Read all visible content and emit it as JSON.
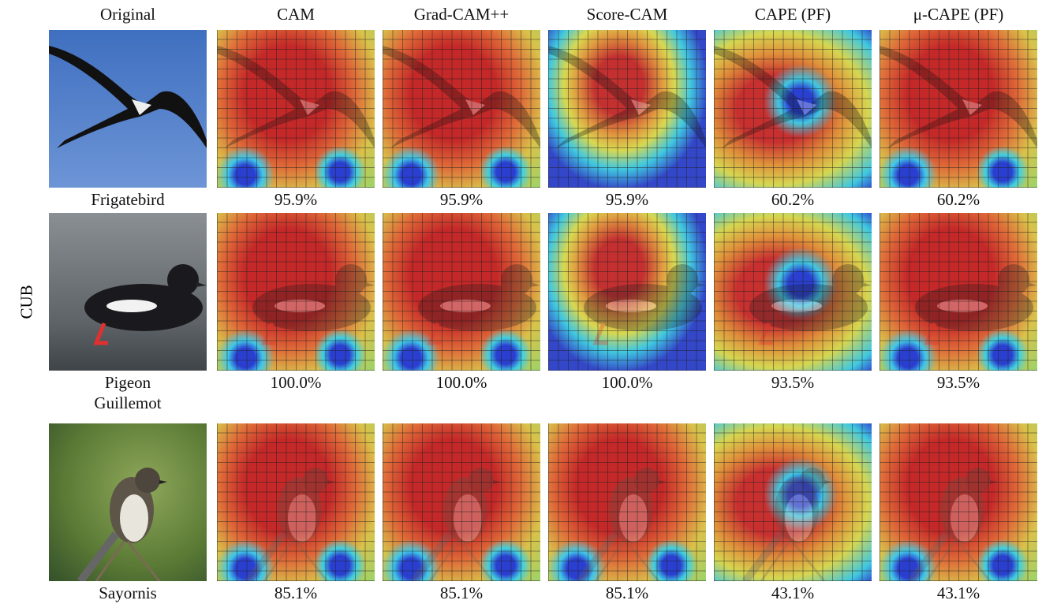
{
  "columns": [
    "Original",
    "CAM",
    "Grad-CAM++",
    "Score-CAM",
    "CAPE (PF)",
    "μ-CAPE (PF)"
  ],
  "dataset_label": "CUB",
  "rows": [
    {
      "label": [
        "Frigatebird"
      ],
      "scores": [
        "95.9%",
        "95.9%",
        "95.9%",
        "60.2%",
        "60.2%"
      ]
    },
    {
      "label": [
        "Pigeon",
        "Guillemot"
      ],
      "scores": [
        "100.0%",
        "100.0%",
        "100.0%",
        "93.5%",
        "93.5%"
      ]
    },
    {
      "label": [
        "Sayornis"
      ],
      "scores": [
        "85.1%",
        "85.1%",
        "85.1%",
        "43.1%",
        "43.1%"
      ]
    }
  ]
}
